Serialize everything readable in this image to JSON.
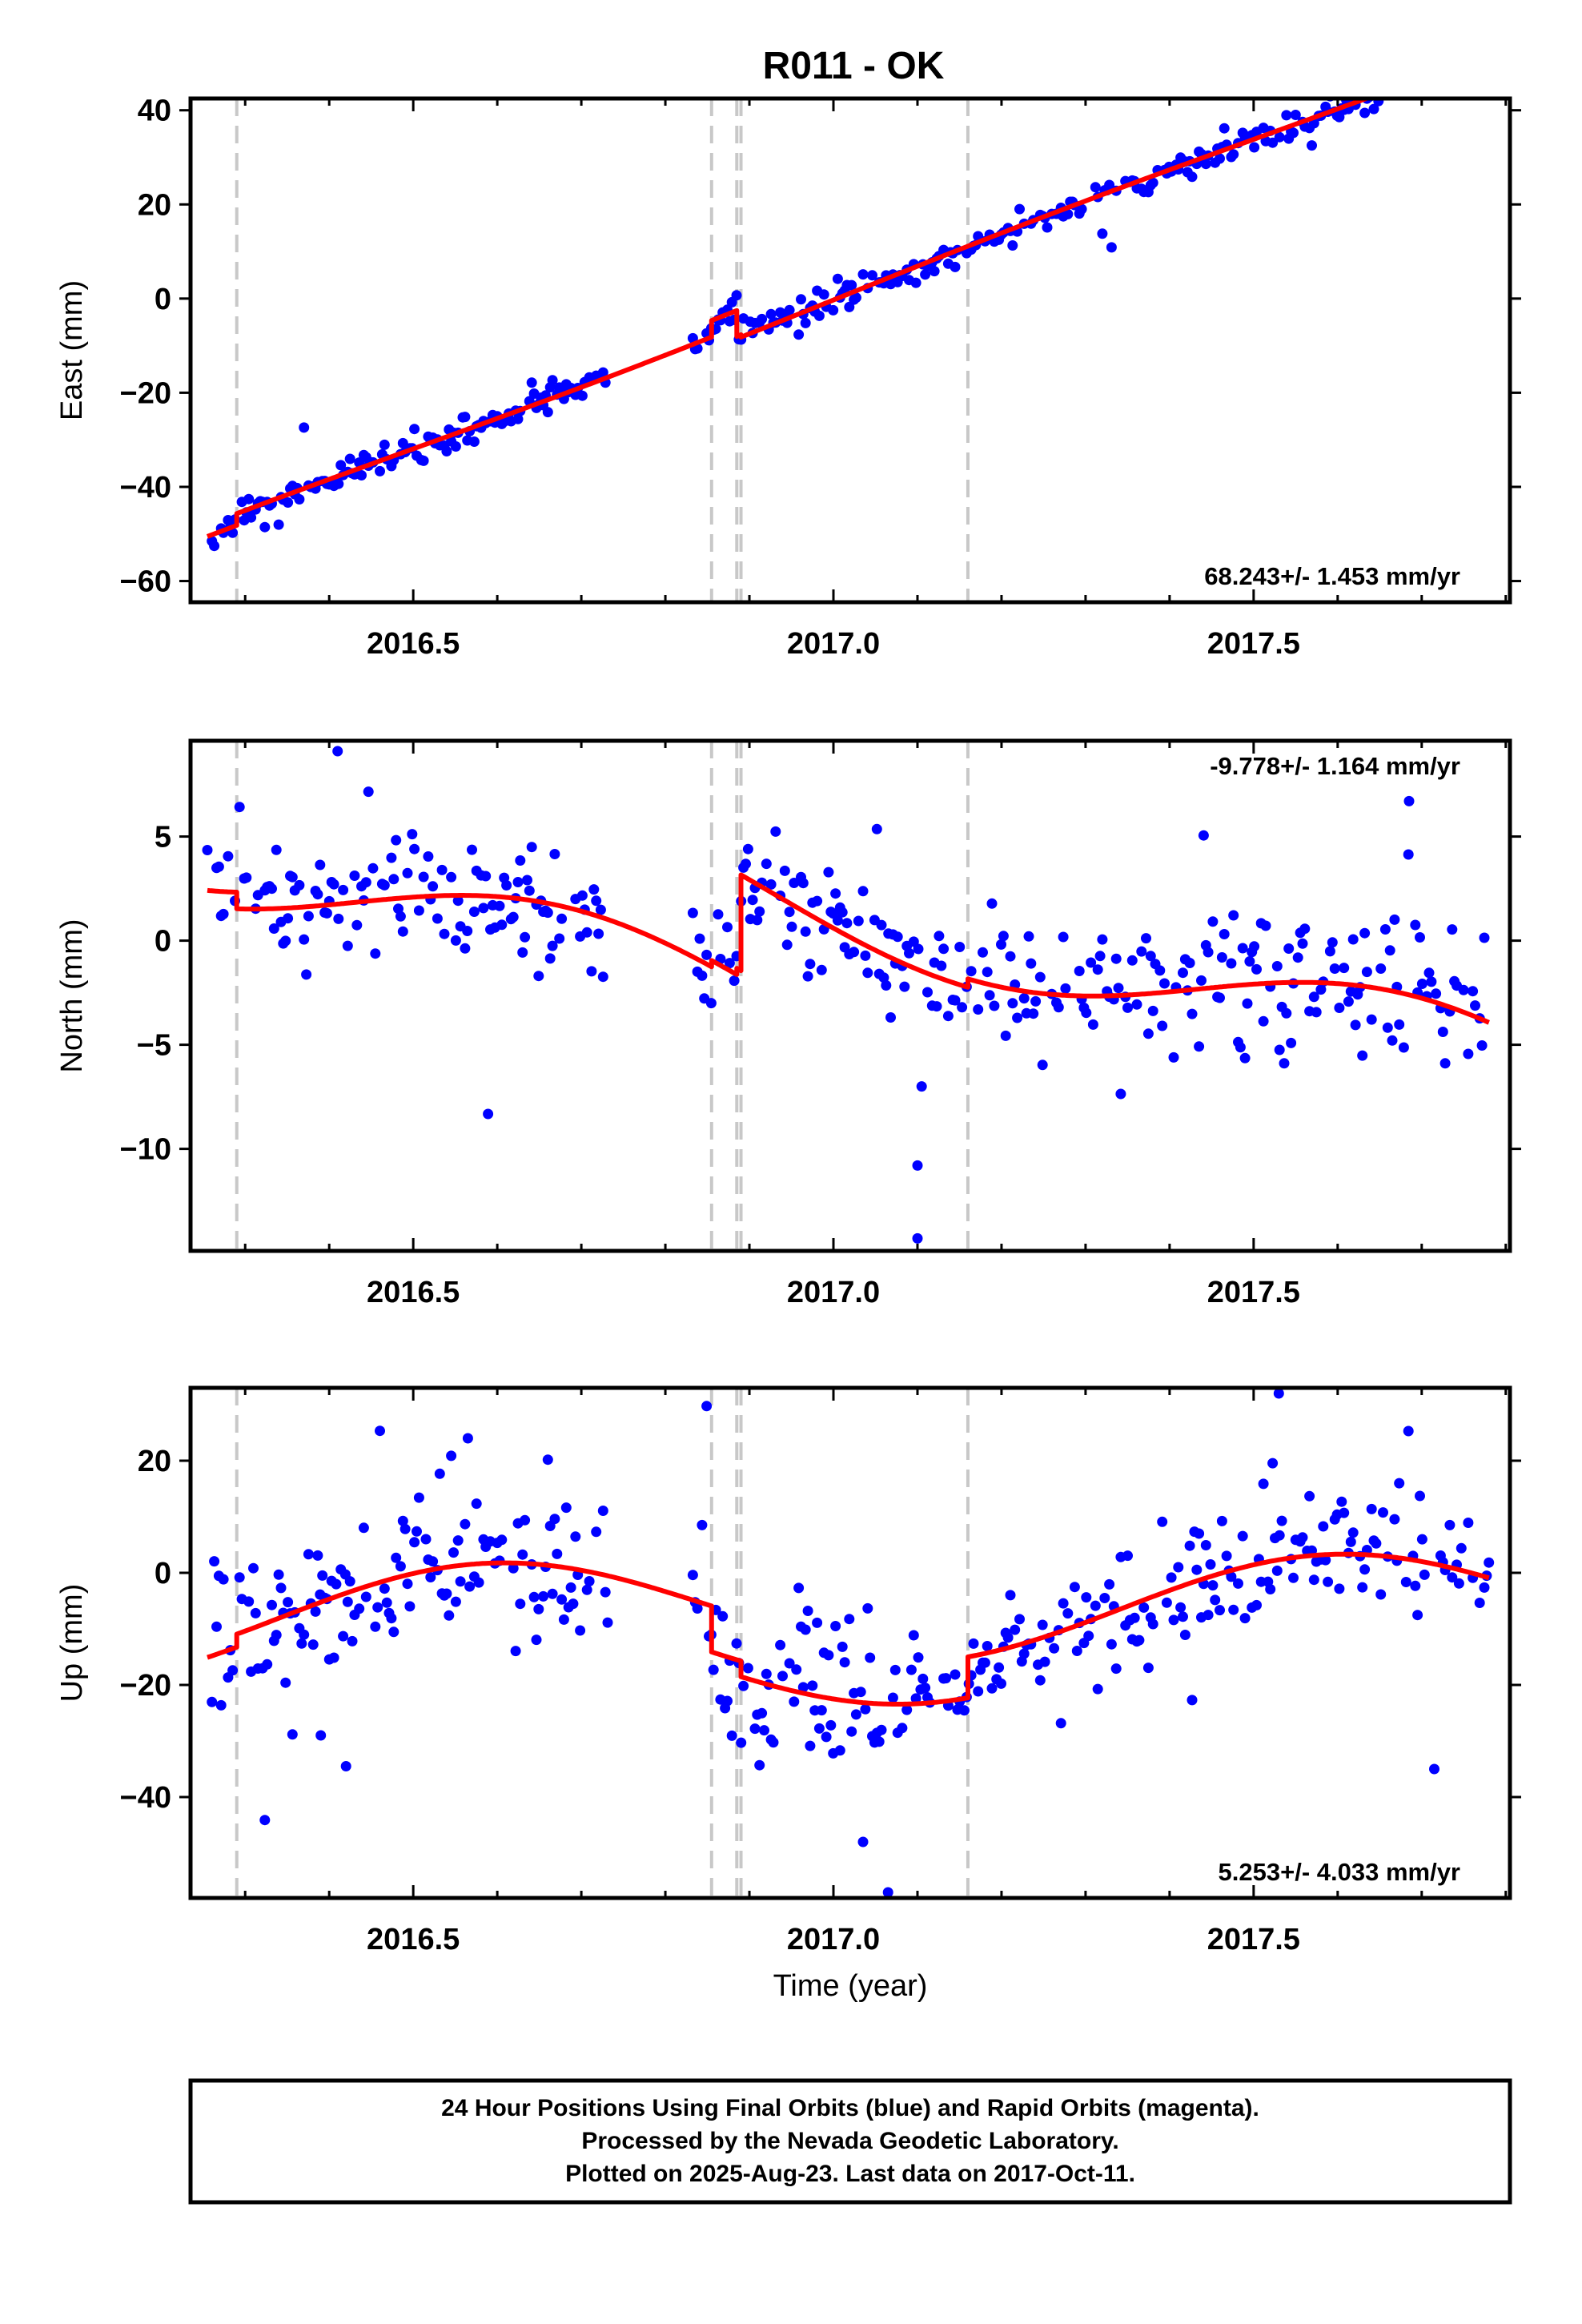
{
  "title": "R011 - OK",
  "footer": {
    "lines": [
      "24 Hour Positions Using Final Orbits (blue) and Rapid Orbits (magenta).",
      "Processed by the Nevada Geodetic Laboratory.",
      "Plotted on 2025-Aug-23. Last data on 2017-Oct-11."
    ]
  },
  "colors": {
    "points": "#0000ff",
    "fit": "#ff0000",
    "breaks": "#c8c8c8",
    "axis": "#000000"
  },
  "chart_data": [
    {
      "type": "scatter",
      "title": "R011 - OK",
      "xlabel": "",
      "ylabel": "East (mm)",
      "xlim": [
        2016.235,
        2017.805
      ],
      "ylim": [
        -64.5,
        42.5
      ],
      "xticks": [
        2016.5,
        2017.0,
        2017.5
      ],
      "xtick_labels": [
        "2016.5",
        "2017.0",
        "2017.5"
      ],
      "yticks": [
        -60,
        -40,
        -20,
        0,
        20,
        40
      ],
      "ytick_labels": [
        "−60",
        "−40",
        "−20",
        "0",
        "20",
        "40"
      ],
      "rate_label": "68.243+/- 1.453 mm/yr",
      "rate_position": "bottom-right",
      "grid": false,
      "breaks": [
        2016.29,
        2016.855,
        2016.885,
        2016.89,
        2017.16
      ],
      "model": {
        "start": 2016.255,
        "end": 2017.78,
        "ref": 2017.0,
        "rate": 68.243,
        "offset": -0.3,
        "annual_sin": 0.6,
        "annual_cos": 0.0,
        "steps": [
          [
            2016.29,
            2.5
          ],
          [
            2016.855,
            3.5
          ],
          [
            2016.885,
            -5.5
          ],
          [
            2016.89,
            -0.5
          ],
          [
            2017.16,
            0.0
          ]
        ]
      },
      "gaps": [
        [
          2016.735,
          2016.83
        ]
      ],
      "noise": {
        "sd": 1.6,
        "outlier_rate": 0.03,
        "outlier_sd": 7.0
      },
      "scatter_seed": 7,
      "series": [
        {
          "kind": "points"
        },
        {
          "kind": "fit"
        }
      ]
    },
    {
      "type": "scatter",
      "xlabel": "",
      "ylabel": "North (mm)",
      "xlim": [
        2016.235,
        2017.805
      ],
      "ylim": [
        -14.9,
        9.6
      ],
      "xticks": [
        2016.5,
        2017.0,
        2017.5
      ],
      "xtick_labels": [
        "2016.5",
        "2017.0",
        "2017.5"
      ],
      "yticks": [
        -10,
        -5,
        0,
        5
      ],
      "ytick_labels": [
        "−10",
        "−5",
        "0",
        "5"
      ],
      "rate_label": "-9.778+/- 1.164 mm/yr",
      "rate_position": "top-right",
      "grid": false,
      "breaks": [
        2016.29,
        2016.855,
        2016.885,
        2016.89,
        2017.16
      ],
      "model": {
        "start": 2016.255,
        "end": 2017.78,
        "ref": 2017.0,
        "rate": -9.778,
        "offset": -2.9,
        "annual_sin": -2.0,
        "annual_cos": -0.9,
        "steps": [
          [
            2016.29,
            -0.8
          ],
          [
            2016.855,
            0.3
          ],
          [
            2016.885,
            0.3
          ],
          [
            2016.89,
            4.6
          ],
          [
            2017.16,
            0.4
          ]
        ]
      },
      "gaps": [
        [
          2016.735,
          2016.83
        ]
      ],
      "noise": {
        "sd": 1.5,
        "outlier_rate": 0.03,
        "outlier_sd": 5.0
      },
      "extra_points": [
        [
          2017.1,
          -10.8
        ],
        [
          2017.1,
          -14.3
        ],
        [
          2017.105,
          -7.0
        ],
        [
          2016.41,
          9.1
        ],
        [
          2017.685,
          6.7
        ]
      ],
      "scatter_seed": 13,
      "series": [
        {
          "kind": "points"
        },
        {
          "kind": "fit"
        }
      ]
    },
    {
      "type": "scatter",
      "xlabel": "Time (year)",
      "ylabel": "Up (mm)",
      "xlim": [
        2016.235,
        2017.805
      ],
      "ylim": [
        -58,
        33
      ],
      "xticks": [
        2016.5,
        2017.0,
        2017.5
      ],
      "xtick_labels": [
        "2016.5",
        "2017.0",
        "2017.5"
      ],
      "yticks": [
        -40,
        -20,
        0,
        20
      ],
      "ytick_labels": [
        "−40",
        "−20",
        "0",
        "20"
      ],
      "rate_label": "5.253+/- 4.033 mm/yr",
      "rate_position": "bottom-right",
      "grid": false,
      "breaks": [
        2016.29,
        2016.855,
        2016.885,
        2016.89,
        2017.16
      ],
      "model": {
        "start": 2016.255,
        "end": 2017.78,
        "ref": 2017.0,
        "rate": 5.253,
        "offset": -6.8,
        "annual_sin": -4.6,
        "annual_cos": -7.0,
        "steps": [
          [
            2016.29,
            2.3
          ],
          [
            2016.855,
            -8.2
          ],
          [
            2016.885,
            0.0
          ],
          [
            2016.89,
            -2.8
          ],
          [
            2017.16,
            7.3
          ]
        ]
      },
      "gaps": [
        [
          2016.735,
          2016.83
        ]
      ],
      "noise": {
        "sd": 6.5,
        "outlier_rate": 0.06,
        "outlier_sd": 18.0
      },
      "extra_points": [
        [
          2017.065,
          -57.0
        ],
        [
          2016.565,
          24.0
        ],
        [
          2017.53,
          32.0
        ],
        [
          2016.42,
          -34.5
        ],
        [
          2017.715,
          -35.0
        ],
        [
          2016.39,
          -29.0
        ]
      ],
      "scatter_seed": 29,
      "series": [
        {
          "kind": "points"
        },
        {
          "kind": "fit"
        }
      ]
    }
  ]
}
